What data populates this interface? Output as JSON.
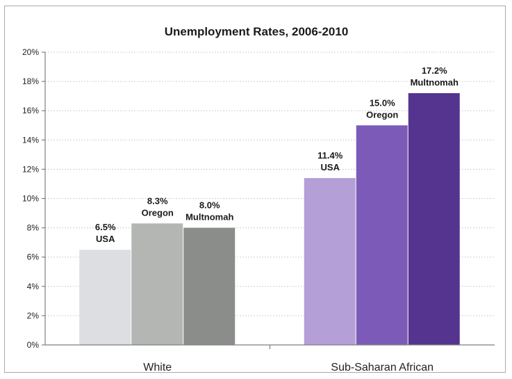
{
  "chart_data": {
    "type": "bar",
    "title": "Unemployment Rates, 2006-2010",
    "categories": [
      "White",
      "Sub-Saharan African"
    ],
    "series": [
      {
        "values": [
          6.5,
          11.4
        ],
        "labels": [
          "6.5%",
          "11.4%"
        ],
        "subs": [
          "USA",
          "USA"
        ],
        "colors": [
          "#dcdee2",
          "#b49fd6"
        ]
      },
      {
        "values": [
          8.3,
          15.0
        ],
        "labels": [
          "8.3%",
          "15.0%"
        ],
        "subs": [
          "Oregon",
          "Oregon"
        ],
        "colors": [
          "#b4b6b4",
          "#7c5bb8"
        ]
      },
      {
        "values": [
          8.0,
          17.2
        ],
        "labels": [
          "8.0%",
          "17.2%"
        ],
        "subs": [
          "Multnomah",
          "Multnomah"
        ],
        "colors": [
          "#8b8d8b",
          "#54348f"
        ]
      }
    ],
    "y_ticks": [
      "0%",
      "2%",
      "4%",
      "6%",
      "8%",
      "10%",
      "12%",
      "14%",
      "16%",
      "18%",
      "20%"
    ],
    "ylim": [
      0,
      20
    ],
    "grid": true,
    "legend": "none"
  }
}
